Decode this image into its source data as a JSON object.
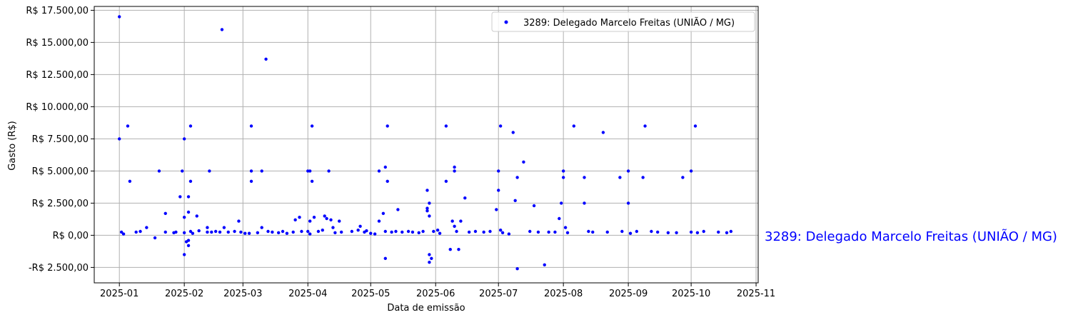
{
  "chart_data": {
    "type": "scatter",
    "title": "",
    "xlabel": "Data de emissão",
    "ylabel": "Gasto (R$)",
    "x_tick_labels": [
      "2025-01",
      "2025-02",
      "2025-03",
      "2025-04",
      "2025-05",
      "2025-06",
      "2025-07",
      "2025-08",
      "2025-09",
      "2025-10",
      "2025-11"
    ],
    "x_tick_dates": [
      "2025-01-01",
      "2025-02-01",
      "2025-03-01",
      "2025-04-01",
      "2025-05-01",
      "2025-06-01",
      "2025-07-01",
      "2025-08-01",
      "2025-09-01",
      "2025-10-01",
      "2025-11-01"
    ],
    "y_ticks": [
      -2500,
      0,
      2500,
      5000,
      7500,
      10000,
      12500,
      15000,
      17500
    ],
    "y_tick_labels": [
      "-R$ 2.500,00",
      "R$ 0,00",
      "R$ 2.500,00",
      "R$ 5.000,00",
      "R$ 7.500,00",
      "R$ 10.000,00",
      "R$ 12.500,00",
      "R$ 15.000,00",
      "R$ 17.500,00"
    ],
    "xlim": [
      "2024-12-20",
      "2025-11-02"
    ],
    "ylim": [
      -3700,
      17800
    ],
    "grid": true,
    "legend_position": "top-right",
    "series": [
      {
        "name": "3289: Delegado Marcelo Freitas (UNIÃO / MG)",
        "color": "#0000ff",
        "points": [
          [
            "2025-01-01",
            17000
          ],
          [
            "2025-01-01",
            7500
          ],
          [
            "2025-01-02",
            250
          ],
          [
            "2025-01-03",
            100
          ],
          [
            "2025-01-05",
            8500
          ],
          [
            "2025-01-06",
            4200
          ],
          [
            "2025-01-09",
            250
          ],
          [
            "2025-01-11",
            300
          ],
          [
            "2025-01-14",
            600
          ],
          [
            "2025-01-18",
            -200
          ],
          [
            "2025-01-20",
            5000
          ],
          [
            "2025-01-23",
            1700
          ],
          [
            "2025-01-23",
            250
          ],
          [
            "2025-01-27",
            200
          ],
          [
            "2025-01-28",
            250
          ],
          [
            "2025-01-30",
            3000
          ],
          [
            "2025-01-31",
            5000
          ],
          [
            "2025-02-01",
            7500
          ],
          [
            "2025-02-01",
            1400
          ],
          [
            "2025-02-01",
            200
          ],
          [
            "2025-02-01",
            -1500
          ],
          [
            "2025-02-02",
            -500
          ],
          [
            "2025-02-03",
            3000
          ],
          [
            "2025-02-03",
            1800
          ],
          [
            "2025-02-04",
            8500
          ],
          [
            "2025-02-04",
            4200
          ],
          [
            "2025-02-04",
            300
          ],
          [
            "2025-02-03",
            -400
          ],
          [
            "2025-02-03",
            -800
          ],
          [
            "2025-02-05",
            150
          ],
          [
            "2025-02-07",
            1500
          ],
          [
            "2025-02-08",
            350
          ],
          [
            "2025-02-12",
            600
          ],
          [
            "2025-02-12",
            250
          ],
          [
            "2025-02-13",
            5000
          ],
          [
            "2025-02-14",
            250
          ],
          [
            "2025-02-16",
            300
          ],
          [
            "2025-02-18",
            250
          ],
          [
            "2025-02-19",
            16000
          ],
          [
            "2025-02-20",
            600
          ],
          [
            "2025-02-22",
            250
          ],
          [
            "2025-02-25",
            300
          ],
          [
            "2025-02-27",
            1100
          ],
          [
            "2025-02-28",
            250
          ],
          [
            "2025-03-02",
            150
          ],
          [
            "2025-03-04",
            150
          ],
          [
            "2025-03-05",
            8500
          ],
          [
            "2025-03-05",
            5000
          ],
          [
            "2025-03-05",
            4200
          ],
          [
            "2025-03-08",
            200
          ],
          [
            "2025-03-10",
            5000
          ],
          [
            "2025-03-10",
            600
          ],
          [
            "2025-03-12",
            13700
          ],
          [
            "2025-03-13",
            300
          ],
          [
            "2025-03-15",
            250
          ],
          [
            "2025-03-18",
            200
          ],
          [
            "2025-03-20",
            300
          ],
          [
            "2025-03-22",
            150
          ],
          [
            "2025-03-25",
            250
          ],
          [
            "2025-03-26",
            1200
          ],
          [
            "2025-03-28",
            1400
          ],
          [
            "2025-03-29",
            300
          ],
          [
            "2025-04-01",
            5000
          ],
          [
            "2025-04-01",
            300
          ],
          [
            "2025-04-02",
            5000
          ],
          [
            "2025-04-02",
            1100
          ],
          [
            "2025-04-02",
            100
          ],
          [
            "2025-04-03",
            8500
          ],
          [
            "2025-04-03",
            4200
          ],
          [
            "2025-04-04",
            1400
          ],
          [
            "2025-04-06",
            300
          ],
          [
            "2025-04-08",
            400
          ],
          [
            "2025-04-09",
            1500
          ],
          [
            "2025-04-10",
            1300
          ],
          [
            "2025-04-12",
            1200
          ],
          [
            "2025-04-13",
            600
          ],
          [
            "2025-04-14",
            200
          ],
          [
            "2025-04-16",
            1100
          ],
          [
            "2025-04-11",
            5000
          ],
          [
            "2025-04-17",
            250
          ],
          [
            "2025-04-22",
            300
          ],
          [
            "2025-04-25",
            400
          ],
          [
            "2025-04-26",
            700
          ],
          [
            "2025-04-28",
            250
          ],
          [
            "2025-04-29",
            350
          ],
          [
            "2025-05-01",
            150
          ],
          [
            "2025-05-03",
            100
          ],
          [
            "2025-05-05",
            5000
          ],
          [
            "2025-05-05",
            1100
          ],
          [
            "2025-05-07",
            1700
          ],
          [
            "2025-05-08",
            5300
          ],
          [
            "2025-05-08",
            300
          ],
          [
            "2025-05-08",
            -1800
          ],
          [
            "2025-05-09",
            8500
          ],
          [
            "2025-05-09",
            4200
          ],
          [
            "2025-05-11",
            250
          ],
          [
            "2025-05-13",
            300
          ],
          [
            "2025-05-14",
            2000
          ],
          [
            "2025-05-16",
            250
          ],
          [
            "2025-05-19",
            300
          ],
          [
            "2025-05-21",
            250
          ],
          [
            "2025-05-24",
            200
          ],
          [
            "2025-05-26",
            300
          ],
          [
            "2025-05-28",
            3500
          ],
          [
            "2025-05-28",
            2100
          ],
          [
            "2025-05-28",
            1900
          ],
          [
            "2025-05-29",
            2500
          ],
          [
            "2025-05-29",
            1500
          ],
          [
            "2025-05-29",
            -1500
          ],
          [
            "2025-05-29",
            -2100
          ],
          [
            "2025-05-30",
            -1800
          ],
          [
            "2025-05-31",
            300
          ],
          [
            "2025-06-02",
            400
          ],
          [
            "2025-06-03",
            150
          ],
          [
            "2025-06-06",
            8500
          ],
          [
            "2025-06-06",
            4200
          ],
          [
            "2025-06-08",
            -1100
          ],
          [
            "2025-06-09",
            1100
          ],
          [
            "2025-06-10",
            5300
          ],
          [
            "2025-06-10",
            5000
          ],
          [
            "2025-06-10",
            700
          ],
          [
            "2025-06-11",
            300
          ],
          [
            "2025-06-12",
            -1100
          ],
          [
            "2025-06-13",
            1100
          ],
          [
            "2025-06-15",
            2900
          ],
          [
            "2025-06-17",
            250
          ],
          [
            "2025-06-20",
            300
          ],
          [
            "2025-06-24",
            250
          ],
          [
            "2025-06-27",
            300
          ],
          [
            "2025-06-30",
            2000
          ],
          [
            "2025-07-01",
            5000
          ],
          [
            "2025-07-01",
            3500
          ],
          [
            "2025-07-02",
            8500
          ],
          [
            "2025-07-02",
            400
          ],
          [
            "2025-07-03",
            200
          ],
          [
            "2025-07-06",
            100
          ],
          [
            "2025-07-08",
            8000
          ],
          [
            "2025-07-09",
            2700
          ],
          [
            "2025-07-10",
            4500
          ],
          [
            "2025-07-10",
            -2600
          ],
          [
            "2025-07-13",
            5700
          ],
          [
            "2025-07-16",
            300
          ],
          [
            "2025-07-18",
            2300
          ],
          [
            "2025-07-20",
            250
          ],
          [
            "2025-07-23",
            -2300
          ],
          [
            "2025-07-25",
            250
          ],
          [
            "2025-07-28",
            250
          ],
          [
            "2025-07-30",
            1300
          ],
          [
            "2025-07-31",
            2500
          ],
          [
            "2025-08-01",
            5000
          ],
          [
            "2025-08-01",
            4500
          ],
          [
            "2025-08-02",
            600
          ],
          [
            "2025-08-03",
            200
          ],
          [
            "2025-08-06",
            8500
          ],
          [
            "2025-08-11",
            4500
          ],
          [
            "2025-08-11",
            2500
          ],
          [
            "2025-08-13",
            300
          ],
          [
            "2025-08-15",
            250
          ],
          [
            "2025-08-20",
            8000
          ],
          [
            "2025-08-22",
            250
          ],
          [
            "2025-08-28",
            4500
          ],
          [
            "2025-08-29",
            300
          ],
          [
            "2025-09-01",
            5000
          ],
          [
            "2025-09-01",
            2500
          ],
          [
            "2025-09-02",
            150
          ],
          [
            "2025-09-05",
            300
          ],
          [
            "2025-09-08",
            4500
          ],
          [
            "2025-09-09",
            8500
          ],
          [
            "2025-09-12",
            300
          ],
          [
            "2025-09-15",
            250
          ],
          [
            "2025-09-20",
            200
          ],
          [
            "2025-09-24",
            200
          ],
          [
            "2025-09-27",
            4500
          ],
          [
            "2025-10-01",
            5000
          ],
          [
            "2025-10-01",
            250
          ],
          [
            "2025-10-03",
            8500
          ],
          [
            "2025-10-04",
            200
          ],
          [
            "2025-10-07",
            300
          ],
          [
            "2025-10-14",
            250
          ],
          [
            "2025-10-18",
            200
          ],
          [
            "2025-10-20",
            300
          ]
        ]
      }
    ]
  }
}
